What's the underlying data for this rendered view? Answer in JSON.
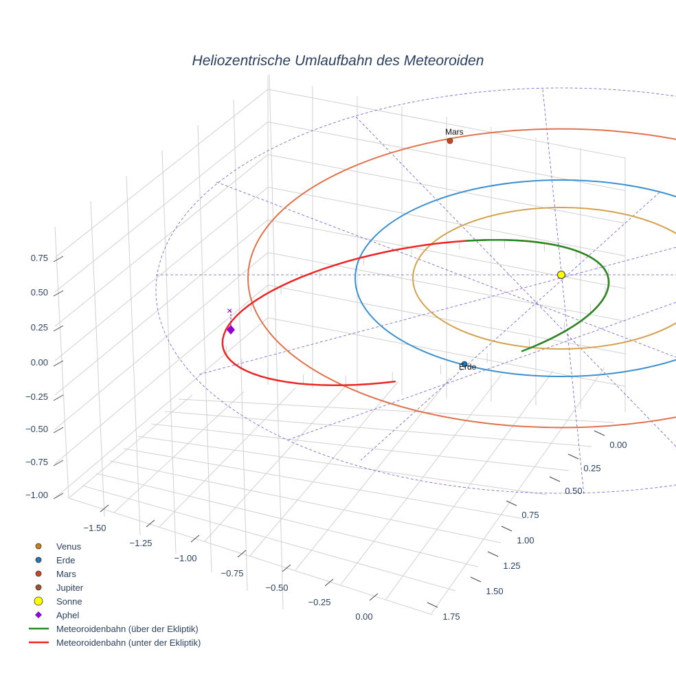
{
  "chart_data": {
    "type": "scatter3d",
    "title": "Heliozentrische Umlaufbahn des Meteoroiden",
    "x_ticks": [
      "−1.50",
      "−1.25",
      "−1.00",
      "−0.75",
      "−0.50",
      "−0.25",
      "0.00"
    ],
    "y_ticks": [
      "0.00",
      "0.25",
      "0.50",
      "0.75",
      "1.00",
      "1.25",
      "1.50",
      "1.75"
    ],
    "z_ticks": [
      "0.75",
      "0.50",
      "0.25",
      "0.00",
      "−0.25",
      "−0.50",
      "−0.75",
      "−1.00"
    ],
    "legend_position": "bottom-left",
    "legend": [
      {
        "name": "Venus",
        "symbol": "circle",
        "color": "#c8811a"
      },
      {
        "name": "Erde",
        "symbol": "circle",
        "color": "#1f77b4"
      },
      {
        "name": "Mars",
        "symbol": "circle",
        "color": "#d1451b"
      },
      {
        "name": "Jupiter",
        "symbol": "circle",
        "color": "#a0522d"
      },
      {
        "name": "Sonne",
        "symbol": "circle",
        "color": "#ffff00"
      },
      {
        "name": "Aphel",
        "symbol": "diamond",
        "color": "#9400d3"
      },
      {
        "name": "Meteoroidenbahn (über der Ekliptik)",
        "symbol": "line",
        "color": "#228b22"
      },
      {
        "name": "Meteoroidenbahn (unter der Ekliptik)",
        "symbol": "line",
        "color": "#ee2222"
      }
    ],
    "orbits": [
      {
        "name": "Venus",
        "radius_au": 0.72,
        "color": "#d4a24c"
      },
      {
        "name": "Erde",
        "radius_au": 1.0,
        "color": "#3a8fd0"
      },
      {
        "name": "Mars",
        "radius_au": 1.52,
        "color": "#e0714a"
      }
    ],
    "point_labels": {
      "mars": "Mars",
      "erde": "Erde"
    },
    "colors": {
      "ecliptic_grid": "#6a5acd",
      "axis_grid": "#d0d0d0"
    }
  }
}
